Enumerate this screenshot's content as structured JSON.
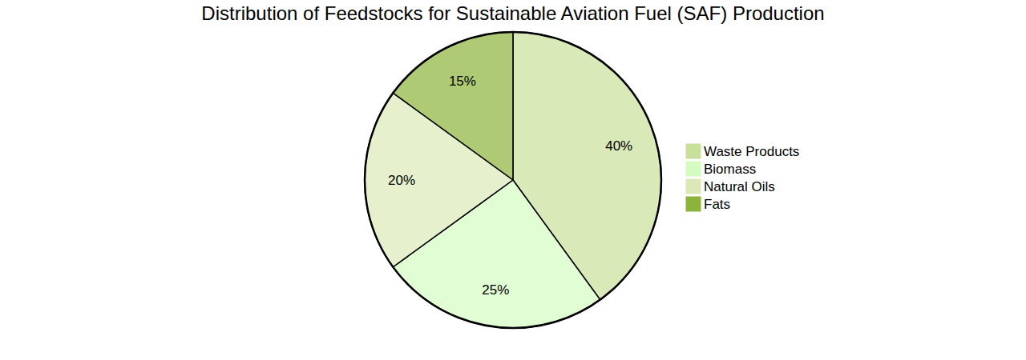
{
  "chart_data": {
    "type": "pie",
    "title": "Distribution of Feedstocks for Sustainable Aviation Fuel (SAF) Production",
    "categories": [
      "Waste Products",
      "Biomass",
      "Natural Oils",
      "Fats"
    ],
    "values": [
      40,
      25,
      20,
      15
    ],
    "value_labels": [
      "40%",
      "25%",
      "20%",
      "15%"
    ],
    "colors": [
      "#c9e09a",
      "#d4fcc0",
      "#dce9b6",
      "#8db43a"
    ],
    "data_labels": true,
    "legend": "right"
  }
}
